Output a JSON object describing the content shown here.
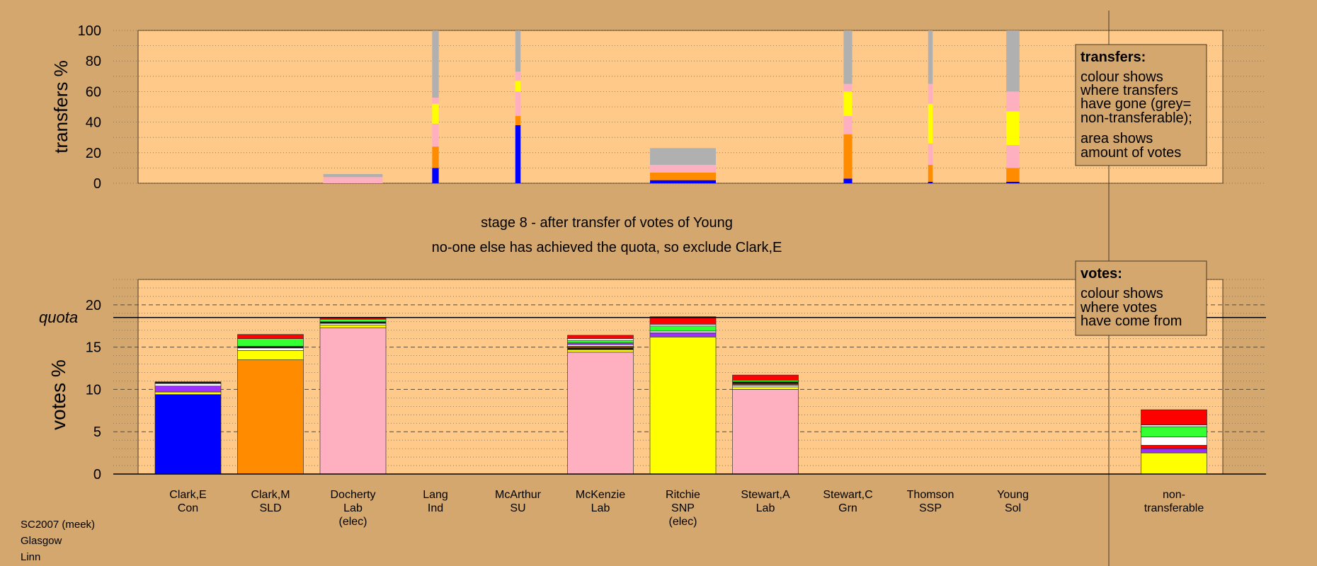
{
  "colors": {
    "background": "#d4a76f",
    "plot_bg": "#ffc98a",
    "blue": "#0000ff",
    "orange": "#ff8c00",
    "pink": "#ffb0c0",
    "yellow": "#ffff00",
    "grey": "#b0b0b0",
    "red": "#ff0000",
    "green": "#33ff33",
    "white": "#ffffff",
    "purple": "#9b30ff",
    "black": "#111111",
    "brown": "#8b4513"
  },
  "title": {
    "line1": "stage 8 - after transfer of votes of Young",
    "line2": "no-one else has achieved the quota, so exclude Clark,E"
  },
  "footer": [
    "SC2007 (meek)",
    "Glasgow",
    "Linn"
  ],
  "candidates": [
    {
      "name": "Clark,E",
      "party": "Con",
      "note": ""
    },
    {
      "name": "Clark,M",
      "party": "SLD",
      "note": ""
    },
    {
      "name": "Docherty",
      "party": "Lab",
      "note": "(elec)"
    },
    {
      "name": "Lang",
      "party": "Ind",
      "note": ""
    },
    {
      "name": "McArthur",
      "party": "SU",
      "note": ""
    },
    {
      "name": "McKenzie",
      "party": "Lab",
      "note": ""
    },
    {
      "name": "Ritchie",
      "party": "SNP",
      "note": "(elec)"
    },
    {
      "name": "Stewart,A",
      "party": "Lab",
      "note": ""
    },
    {
      "name": "Stewart,C",
      "party": "Grn",
      "note": ""
    },
    {
      "name": "Thomson",
      "party": "SSP",
      "note": ""
    },
    {
      "name": "Young",
      "party": "Sol",
      "note": ""
    },
    {
      "name": "non-",
      "party": "transferable",
      "note": ""
    }
  ],
  "legends": {
    "transfers": {
      "title": "transfers:",
      "lines": [
        "colour shows",
        "where transfers",
        "have gone (grey=",
        "non-transferable);",
        "area shows",
        "amount of votes"
      ]
    },
    "votes": {
      "title": "votes:",
      "lines": [
        "colour shows",
        "where votes",
        "have come from"
      ]
    }
  },
  "chart_data": [
    {
      "type": "bar",
      "stacked": true,
      "ylabel": "transfers %",
      "ylim": [
        0,
        100
      ],
      "yticks": [
        0,
        20,
        40,
        60,
        80,
        100
      ],
      "description_bars": [
        {
          "candidate_index": 2,
          "width_fraction": 0.9,
          "segments": [
            {
              "color": "pink",
              "value": 4
            },
            {
              "color": "grey",
              "value": 2
            }
          ]
        },
        {
          "candidate_index": 3,
          "width_fraction": 0.1,
          "segments": [
            {
              "color": "blue",
              "value": 10
            },
            {
              "color": "orange",
              "value": 14
            },
            {
              "color": "pink",
              "value": 15
            },
            {
              "color": "yellow",
              "value": 13
            },
            {
              "color": "pink",
              "value": 4
            },
            {
              "color": "grey",
              "value": 44
            }
          ]
        },
        {
          "candidate_index": 4,
          "width_fraction": 0.08,
          "segments": [
            {
              "color": "blue",
              "value": 38
            },
            {
              "color": "orange",
              "value": 6
            },
            {
              "color": "pink",
              "value": 16
            },
            {
              "color": "yellow",
              "value": 7
            },
            {
              "color": "pink",
              "value": 6
            },
            {
              "color": "grey",
              "value": 27
            }
          ]
        },
        {
          "candidate_index": 6,
          "width_fraction": 1.0,
          "segments": [
            {
              "color": "blue",
              "value": 2
            },
            {
              "color": "orange",
              "value": 5
            },
            {
              "color": "pink",
              "value": 5
            },
            {
              "color": "grey",
              "value": 11
            }
          ]
        },
        {
          "candidate_index": 8,
          "width_fraction": 0.13,
          "segments": [
            {
              "color": "blue",
              "value": 3
            },
            {
              "color": "orange",
              "value": 29
            },
            {
              "color": "pink",
              "value": 12
            },
            {
              "color": "yellow",
              "value": 16
            },
            {
              "color": "pink",
              "value": 5
            },
            {
              "color": "grey",
              "value": 35
            }
          ]
        },
        {
          "candidate_index": 9,
          "width_fraction": 0.07,
          "segments": [
            {
              "color": "blue",
              "value": 1
            },
            {
              "color": "orange",
              "value": 11
            },
            {
              "color": "pink",
              "value": 14
            },
            {
              "color": "yellow",
              "value": 26
            },
            {
              "color": "pink",
              "value": 13
            },
            {
              "color": "grey",
              "value": 35
            }
          ]
        },
        {
          "candidate_index": 10,
          "width_fraction": 0.2,
          "segments": [
            {
              "color": "blue",
              "value": 1
            },
            {
              "color": "orange",
              "value": 9
            },
            {
              "color": "pink",
              "value": 15
            },
            {
              "color": "yellow",
              "value": 22
            },
            {
              "color": "pink",
              "value": 13
            },
            {
              "color": "grey",
              "value": 40
            }
          ]
        }
      ]
    },
    {
      "type": "bar",
      "stacked": true,
      "ylabel": "votes %",
      "ylim": [
        0,
        23
      ],
      "yticks": [
        0,
        5,
        10,
        15,
        20
      ],
      "quota_label": "quota",
      "quota": 18.5,
      "bars": [
        {
          "candidate_index": 0,
          "segments": [
            {
              "color": "blue",
              "value": 9.4
            },
            {
              "color": "yellow",
              "value": 0.3
            },
            {
              "color": "purple",
              "value": 0.7
            },
            {
              "color": "white",
              "value": 0.3
            },
            {
              "color": "black",
              "value": 0.2
            }
          ]
        },
        {
          "candidate_index": 1,
          "segments": [
            {
              "color": "orange",
              "value": 13.5
            },
            {
              "color": "yellow",
              "value": 1.1
            },
            {
              "color": "white",
              "value": 0.3
            },
            {
              "color": "black",
              "value": 0.2
            },
            {
              "color": "green",
              "value": 0.9
            },
            {
              "color": "red",
              "value": 0.5
            }
          ]
        },
        {
          "candidate_index": 2,
          "segments": [
            {
              "color": "pink",
              "value": 17.3
            },
            {
              "color": "yellow",
              "value": 0.3
            },
            {
              "color": "white",
              "value": 0.2
            },
            {
              "color": "black",
              "value": 0.2
            },
            {
              "color": "green",
              "value": 0.3
            },
            {
              "color": "red",
              "value": 0.2
            }
          ]
        },
        {
          "candidate_index": 5,
          "segments": [
            {
              "color": "pink",
              "value": 14.4
            },
            {
              "color": "yellow",
              "value": 0.3
            },
            {
              "color": "black",
              "value": 0.2
            },
            {
              "color": "brown",
              "value": 0.2
            },
            {
              "color": "white",
              "value": 0.2
            },
            {
              "color": "purple",
              "value": 0.2
            },
            {
              "color": "green",
              "value": 0.3
            },
            {
              "color": "white",
              "value": 0.2
            },
            {
              "color": "red",
              "value": 0.4
            }
          ]
        },
        {
          "candidate_index": 6,
          "segments": [
            {
              "color": "yellow",
              "value": 16.2
            },
            {
              "color": "purple",
              "value": 0.5
            },
            {
              "color": "white",
              "value": 0.2
            },
            {
              "color": "green",
              "value": 0.6
            },
            {
              "color": "white",
              "value": 0.2
            },
            {
              "color": "red",
              "value": 0.9
            }
          ]
        },
        {
          "candidate_index": 7,
          "segments": [
            {
              "color": "pink",
              "value": 10
            },
            {
              "color": "yellow",
              "value": 0.3
            },
            {
              "color": "white",
              "value": 0.2
            },
            {
              "color": "brown",
              "value": 0.2
            },
            {
              "color": "black",
              "value": 0.2
            },
            {
              "color": "green",
              "value": 0.2
            },
            {
              "color": "red",
              "value": 0.6
            }
          ]
        },
        {
          "candidate_index": 11,
          "segments": [
            {
              "color": "yellow",
              "value": 2.5
            },
            {
              "color": "purple",
              "value": 0.5
            },
            {
              "color": "red",
              "value": 0.4
            },
            {
              "color": "white",
              "value": 1
            },
            {
              "color": "green",
              "value": 1.2
            },
            {
              "color": "white",
              "value": 0.2
            },
            {
              "color": "red",
              "value": 1.8
            }
          ]
        }
      ]
    }
  ]
}
